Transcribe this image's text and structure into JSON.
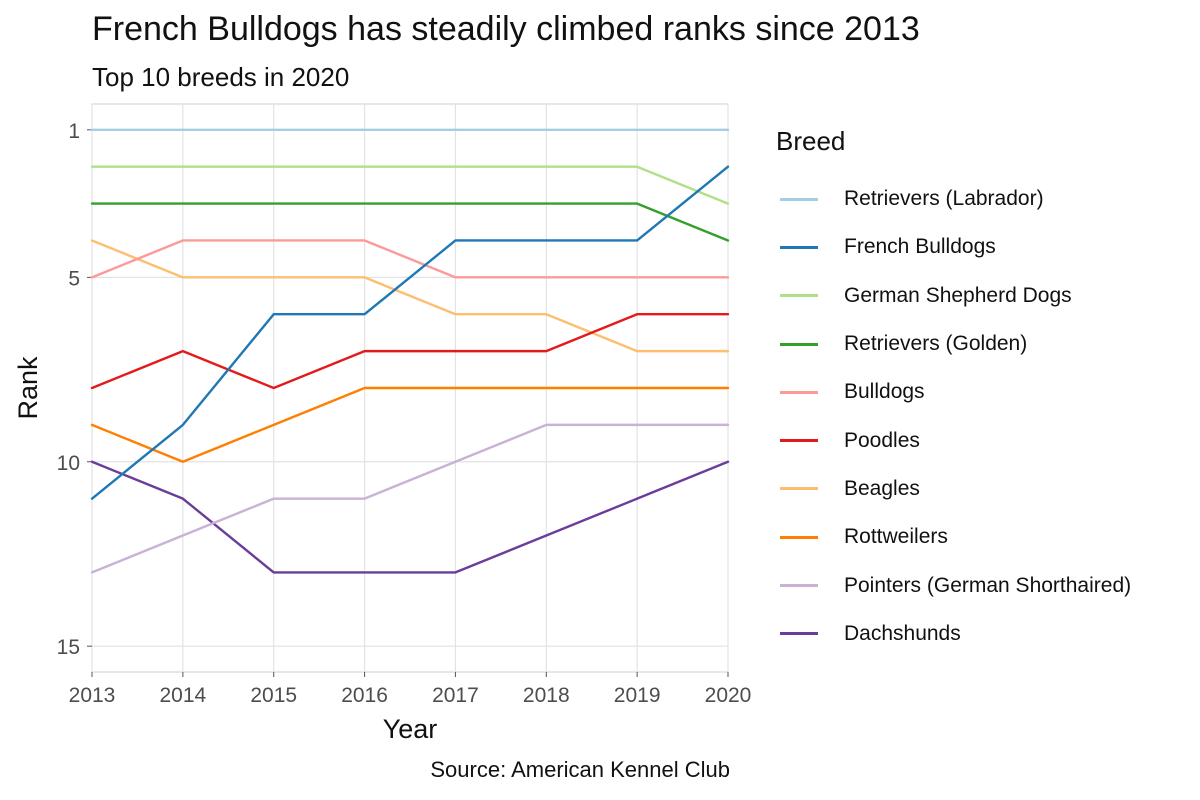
{
  "title": "French Bulldogs has steadily climbed ranks since 2013",
  "subtitle": "Top 10 breeds in 2020",
  "caption": "Source: American Kennel Club",
  "chart_data": {
    "type": "line",
    "xlabel": "Year",
    "ylabel": "Rank",
    "x": [
      2013,
      2014,
      2015,
      2016,
      2017,
      2018,
      2019,
      2020
    ],
    "x_ticks": [
      "2013",
      "2014",
      "2015",
      "2016",
      "2017",
      "2018",
      "2019",
      "2020"
    ],
    "y_ticks": [
      "1",
      "5",
      "10",
      "15"
    ],
    "y_tick_values": [
      1,
      5,
      10,
      15
    ],
    "ylim": [
      15.7,
      0.3
    ],
    "y_reversed": true,
    "grid": true,
    "legend_title": "Breed",
    "legend_position": "right",
    "series": [
      {
        "name": "Retrievers (Labrador)",
        "color": "#a6cee3",
        "values": [
          1,
          1,
          1,
          1,
          1,
          1,
          1,
          1
        ]
      },
      {
        "name": "French Bulldogs",
        "color": "#1f78b4",
        "values": [
          11,
          9,
          6,
          6,
          4,
          4,
          4,
          2
        ]
      },
      {
        "name": "German Shepherd Dogs",
        "color": "#b2df8a",
        "values": [
          2,
          2,
          2,
          2,
          2,
          2,
          2,
          3
        ]
      },
      {
        "name": "Retrievers (Golden)",
        "color": "#33a02c",
        "values": [
          3,
          3,
          3,
          3,
          3,
          3,
          3,
          4
        ]
      },
      {
        "name": "Bulldogs",
        "color": "#fb9a99",
        "values": [
          5,
          4,
          4,
          4,
          5,
          5,
          5,
          5
        ]
      },
      {
        "name": "Poodles",
        "color": "#e31a1c",
        "values": [
          8,
          7,
          8,
          7,
          7,
          7,
          6,
          6
        ]
      },
      {
        "name": "Beagles",
        "color": "#fdbf6f",
        "values": [
          4,
          5,
          5,
          5,
          6,
          6,
          7,
          7
        ]
      },
      {
        "name": "Rottweilers",
        "color": "#ff7f00",
        "values": [
          9,
          10,
          9,
          8,
          8,
          8,
          8,
          8
        ]
      },
      {
        "name": "Pointers (German Shorthaired)",
        "color": "#cab2d6",
        "values": [
          13,
          12,
          11,
          11,
          10,
          9,
          9,
          9
        ]
      },
      {
        "name": "Dachshunds",
        "color": "#6a3d9a",
        "values": [
          10,
          11,
          13,
          13,
          13,
          12,
          11,
          10
        ]
      }
    ]
  }
}
